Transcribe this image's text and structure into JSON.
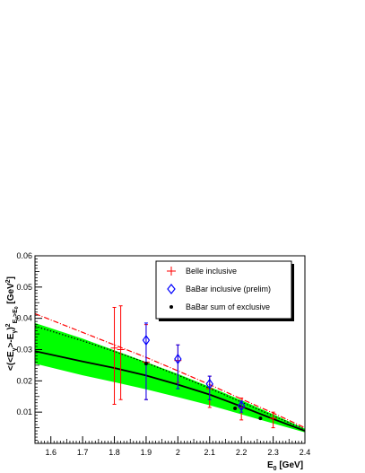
{
  "chart_data": {
    "type": "scatter",
    "title": "",
    "xlabel_main": "E",
    "xlabel_sub": "0",
    "xlabel_unit": " [GeV]",
    "ylabel_main": "<(<E",
    "ylabel_sub1": "γ",
    "ylabel_mid": ">-E",
    "ylabel_sub2": "γ",
    "ylabel_close": ")",
    "ylabel_sup": "2",
    "ylabel_cond": "E",
    "ylabel_cond_sub": "γ",
    "ylabel_cond_rest": ">E",
    "ylabel_cond_sub2": "0",
    "ylabel_unit": " [GeV",
    "ylabel_unit_sup": "2",
    "ylabel_unit_close": "]",
    "xlim": [
      1.55,
      2.4
    ],
    "ylim": [
      0.0,
      0.06
    ],
    "x_ticks": [
      1.6,
      1.7,
      1.8,
      1.9,
      2.0,
      2.1,
      2.2,
      2.3,
      2.4
    ],
    "x_tick_labels": [
      "1.6",
      "1.7",
      "1.8",
      "1.9",
      "2",
      "2.1",
      "2.2",
      "2.3",
      "2.4"
    ],
    "y_ticks": [
      0.01,
      0.02,
      0.03,
      0.04,
      0.05,
      0.06
    ],
    "y_tick_labels": [
      "0.01",
      "0.02",
      "0.03",
      "0.04",
      "0.05",
      "0.06"
    ],
    "legend_position": "top-right",
    "legend": [
      {
        "label": "Belle inclusive",
        "marker": "cross",
        "color": "#ff0000"
      },
      {
        "label": "BaBar inclusive (prelim)",
        "marker": "diamond",
        "color": "#0000ff"
      },
      {
        "label": "BaBar sum of exclusive",
        "marker": "dot",
        "color": "#000000"
      }
    ],
    "band": {
      "color": "#00ff00",
      "x": [
        1.55,
        1.7,
        1.8,
        1.9,
        2.0,
        2.1,
        2.2,
        2.3,
        2.4
      ],
      "upper": [
        0.0385,
        0.0335,
        0.0298,
        0.026,
        0.0222,
        0.0181,
        0.0138,
        0.0093,
        0.0047
      ],
      "lower": [
        0.0255,
        0.0218,
        0.0196,
        0.0173,
        0.0148,
        0.0122,
        0.0093,
        0.0064,
        0.0035
      ]
    },
    "series": [
      {
        "style": "solid",
        "color": "#000000",
        "x": [
          1.55,
          1.7,
          1.8,
          1.9,
          2.0,
          2.1,
          2.2,
          2.3,
          2.4
        ],
        "y": [
          0.0295,
          0.0262,
          0.0241,
          0.0217,
          0.0188,
          0.0156,
          0.0118,
          0.0078,
          0.004
        ]
      },
      {
        "style": "dotted",
        "color": "#000000",
        "x": [
          1.55,
          1.7,
          1.8,
          1.9,
          2.0,
          2.1,
          2.2,
          2.3,
          2.4
        ],
        "y": [
          0.0375,
          0.0328,
          0.0294,
          0.0258,
          0.0218,
          0.0176,
          0.0132,
          0.0088,
          0.0045
        ]
      },
      {
        "style": "dashdot",
        "color": "#ff0000",
        "x": [
          1.55,
          1.7,
          1.8,
          1.9,
          2.0,
          2.1,
          2.2,
          2.3,
          2.4
        ],
        "y": [
          0.0415,
          0.0355,
          0.0315,
          0.0275,
          0.0232,
          0.0188,
          0.0142,
          0.0097,
          0.005
        ]
      }
    ],
    "points": [
      {
        "series": "Belle inclusive",
        "x": 1.8,
        "y": 0.0305,
        "yerr_low": 0.018,
        "yerr_high": 0.013
      },
      {
        "series": "Belle inclusive",
        "x": 1.82,
        "y": 0.03,
        "yerr_low": 0.016,
        "yerr_high": 0.014
      },
      {
        "series": "Belle inclusive",
        "x": 1.9,
        "y": 0.026,
        "yerr_low": 0.012,
        "yerr_high": 0.012
      },
      {
        "series": "Belle inclusive",
        "x": 2.0,
        "y": 0.0265,
        "yerr_low": 0.007,
        "yerr_high": 0.005
      },
      {
        "series": "Belle inclusive",
        "x": 2.1,
        "y": 0.0175,
        "yerr_low": 0.006,
        "yerr_high": 0.004
      },
      {
        "series": "Belle inclusive",
        "x": 2.2,
        "y": 0.0115,
        "yerr_low": 0.004,
        "yerr_high": 0.003
      },
      {
        "series": "Belle inclusive",
        "x": 2.3,
        "y": 0.008,
        "yerr_low": 0.003,
        "yerr_high": 0.002
      },
      {
        "series": "BaBar inclusive (prelim)",
        "x": 1.9,
        "y": 0.033,
        "yerr_low": 0.019,
        "yerr_high": 0.0055
      },
      {
        "series": "BaBar inclusive (prelim)",
        "x": 2.0,
        "y": 0.027,
        "yerr_low": 0.0095,
        "yerr_high": 0.0045
      },
      {
        "series": "BaBar inclusive (prelim)",
        "x": 2.1,
        "y": 0.019,
        "yerr_low": 0.005,
        "yerr_high": 0.0025
      },
      {
        "series": "BaBar inclusive (prelim)",
        "x": 2.2,
        "y": 0.012,
        "yerr_low": 0.002,
        "yerr_high": 0.0015
      },
      {
        "series": "BaBar sum of exclusive",
        "x": 1.9,
        "y": 0.0255,
        "yerr_low": 0.0,
        "yerr_high": 0.0
      },
      {
        "series": "BaBar sum of exclusive",
        "x": 2.18,
        "y": 0.0112,
        "yerr_low": 0.0,
        "yerr_high": 0.0
      },
      {
        "series": "BaBar sum of exclusive",
        "x": 2.26,
        "y": 0.008,
        "yerr_low": 0.0,
        "yerr_high": 0.0
      }
    ]
  }
}
